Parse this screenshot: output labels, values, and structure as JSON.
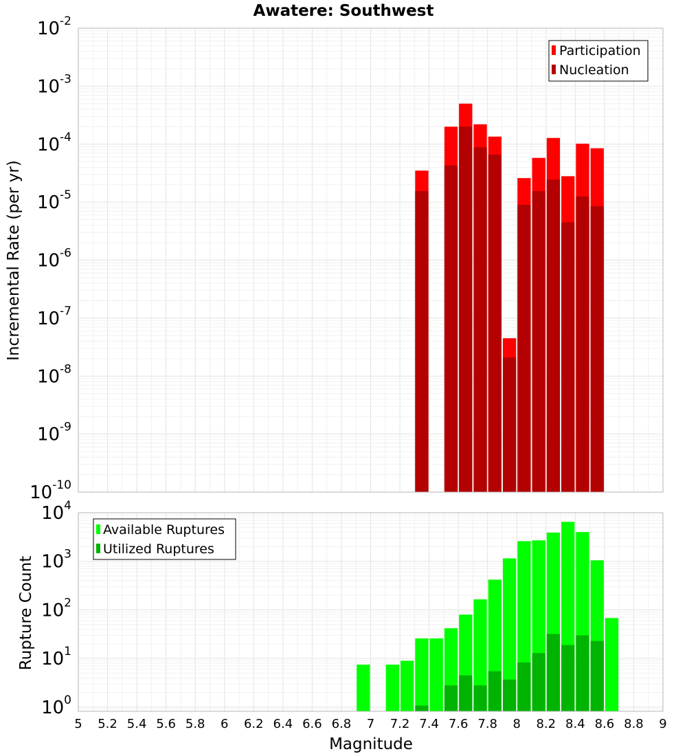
{
  "chart_data": [
    {
      "type": "bar",
      "title": "Awatere: Southwest",
      "ylabel": "Incremental Rate (per yr)",
      "xlabel": "",
      "yscale": "log",
      "ylim": [
        1e-10,
        0.01
      ],
      "xlim": [
        5,
        9
      ],
      "bar_width": 0.1,
      "y_ticks": [
        {
          "base": "10",
          "exp": "-10"
        },
        {
          "base": "10",
          "exp": "-9"
        },
        {
          "base": "10",
          "exp": "-8"
        },
        {
          "base": "10",
          "exp": "-7"
        },
        {
          "base": "10",
          "exp": "-6"
        },
        {
          "base": "10",
          "exp": "-5"
        },
        {
          "base": "10",
          "exp": "-4"
        },
        {
          "base": "10",
          "exp": "-3"
        },
        {
          "base": "10",
          "exp": "-2"
        }
      ],
      "legend": "top-right",
      "grid": true,
      "x": [
        7.35,
        7.55,
        7.65,
        7.75,
        7.85,
        7.95,
        8.05,
        8.15,
        8.25,
        8.35,
        8.45,
        8.55
      ],
      "series": [
        {
          "name": "Participation",
          "color": "#ff0000",
          "values": [
            3.5e-05,
            0.0002,
            0.0005,
            0.00022,
            0.000135,
            4.5e-08,
            2.6e-05,
            5.8e-05,
            0.000128,
            2.8e-05,
            0.000102,
            8.5e-05
          ]
        },
        {
          "name": "Nucleation",
          "color": "#b30000",
          "values": [
            1.55e-05,
            4.3e-05,
            0.0002,
            8.8e-05,
            6.6e-05,
            2.1e-08,
            9e-06,
            1.55e-05,
            2.45e-05,
            4.5e-06,
            1.25e-05,
            8.5e-06
          ]
        }
      ]
    },
    {
      "type": "bar",
      "title": "",
      "ylabel": "Rupture Count",
      "xlabel": "Magnitude",
      "yscale": "log",
      "ylim": [
        0.82,
        10000
      ],
      "xlim": [
        5,
        9
      ],
      "bar_width": 0.1,
      "y_ticks": [
        {
          "value": 1,
          "base": "10",
          "exp": "0"
        },
        {
          "value": 10,
          "base": "10",
          "exp": "1"
        },
        {
          "value": 100,
          "base": "10",
          "exp": "2"
        },
        {
          "value": 1000,
          "base": "10",
          "exp": "3"
        },
        {
          "value": 10000,
          "base": "10",
          "exp": "4"
        }
      ],
      "x_ticks": [
        "5",
        "5.2",
        "5.4",
        "5.6",
        "5.8",
        "6",
        "6.2",
        "6.4",
        "6.6",
        "6.8",
        "7",
        "7.2",
        "7.4",
        "7.6",
        "7.8",
        "8",
        "8.2",
        "8.4",
        "8.6",
        "8.8",
        "9"
      ],
      "legend": "top-left",
      "grid": true,
      "x": [
        6.95,
        7.15,
        7.25,
        7.35,
        7.45,
        7.55,
        7.65,
        7.75,
        7.85,
        7.95,
        8.05,
        8.15,
        8.25,
        8.35,
        8.45,
        8.55,
        8.65
      ],
      "series": [
        {
          "name": "Available Ruptures",
          "color": "#00ff00",
          "values": [
            7.5,
            7.5,
            9,
            26,
            26,
            42,
            80,
            165,
            420,
            1150,
            2600,
            2700,
            3900,
            6500,
            4000,
            1050,
            68
          ]
        },
        {
          "name": "Utilized Ruptures",
          "color": "#00b300",
          "values": [
            0,
            0,
            0,
            1.08,
            0,
            2.8,
            4.5,
            2.8,
            5.5,
            3.7,
            8.3,
            13,
            32,
            19,
            30,
            23,
            0
          ]
        }
      ]
    }
  ]
}
